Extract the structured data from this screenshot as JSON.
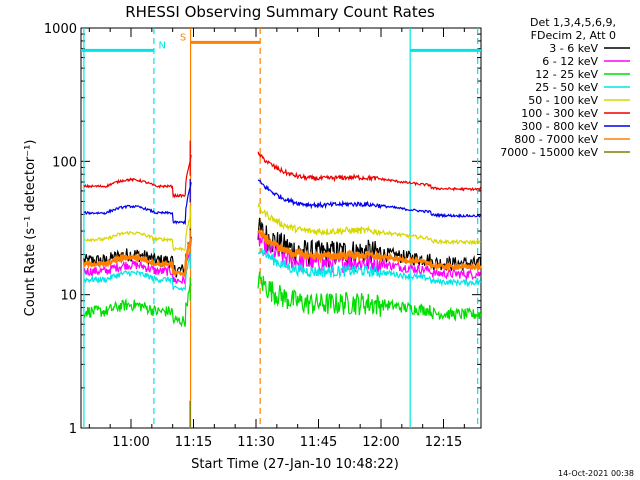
{
  "chart_data": {
    "type": "line",
    "title": "RHESSI Observing Summary Count Rates",
    "xlabel": "Start Time (27-Jan-10 10:48:22)",
    "ylabel": "Count Rate (s⁻¹ detector⁻¹)",
    "yscale": "log",
    "ylim": [
      1,
      1000
    ],
    "xlim_min": [
      -12,
      84
    ],
    "x_unit": "minutes after 11:00",
    "y_ticks": [
      {
        "v": 1,
        "label": "1"
      },
      {
        "v": 10,
        "label": "10"
      },
      {
        "v": 100,
        "label": "100"
      },
      {
        "v": 1000,
        "label": "1000"
      }
    ],
    "x_ticks": [
      {
        "v": 0,
        "label": "11:00"
      },
      {
        "v": 15,
        "label": "11:15"
      },
      {
        "v": 30,
        "label": "11:30"
      },
      {
        "v": 45,
        "label": "11:45"
      },
      {
        "v": 60,
        "label": "12:00"
      },
      {
        "v": 75,
        "label": "12:15"
      }
    ],
    "legend_header": [
      "Det 1,3,4,5,6,9,",
      "FDecim 2, Att 0"
    ],
    "series": [
      {
        "name": "3 - 6 keV",
        "color": "#000000",
        "level": 18,
        "noise": 0.12
      },
      {
        "name": "6 - 12 keV",
        "color": "#ff00ff",
        "level": 15,
        "noise": 0.08
      },
      {
        "name": "12 - 25 keV",
        "color": "#00dd00",
        "level": 7.5,
        "noise": 0.1
      },
      {
        "name": "25 - 50 keV",
        "color": "#00e5e5",
        "level": 13,
        "noise": 0.05
      },
      {
        "name": "50 - 100 keV",
        "color": "#d7d700",
        "level": 26,
        "noise": 0.03
      },
      {
        "name": "100 - 300 keV",
        "color": "#ee0000",
        "level": 65,
        "noise": 0.02
      },
      {
        "name": "300 - 800 keV",
        "color": "#0000ee",
        "level": 41,
        "noise": 0.02
      },
      {
        "name": "800 - 7000 keV",
        "color": "#ff8000",
        "level": 17,
        "noise": 0.03
      },
      {
        "name": "7000 - 15000 keV",
        "color": "#7d8000",
        "level": 1.0,
        "noise": 0.0
      }
    ],
    "gaps": [
      {
        "from": 14.5,
        "to": 30.5
      }
    ],
    "annotations": [
      {
        "label": "N",
        "color": "#00e5e5",
        "region": "night",
        "from": -12,
        "to": 5.5,
        "y": 680
      },
      {
        "label": "N",
        "color": "#00e5e5",
        "region": "night",
        "from": 67,
        "to": 84,
        "y": 680
      },
      {
        "label": "S",
        "color": "#ff8000",
        "region": "saa",
        "from": 14.3,
        "to": 31,
        "y": 780
      }
    ],
    "vlines": [
      {
        "x": -11.3,
        "color": "#00e5e5",
        "style": "solid"
      },
      {
        "x": 5.5,
        "color": "#00e5e5",
        "style": "dashed"
      },
      {
        "x": 14.3,
        "color": "#ff8000",
        "style": "solid"
      },
      {
        "x": 31,
        "color": "#ff8000",
        "style": "dashed"
      },
      {
        "x": 67,
        "color": "#00e5e5",
        "style": "solid"
      },
      {
        "x": 83.2,
        "color": "#00e5e5",
        "style": "dashed"
      }
    ],
    "timestamp": "14-Oct-2021 00:38"
  }
}
